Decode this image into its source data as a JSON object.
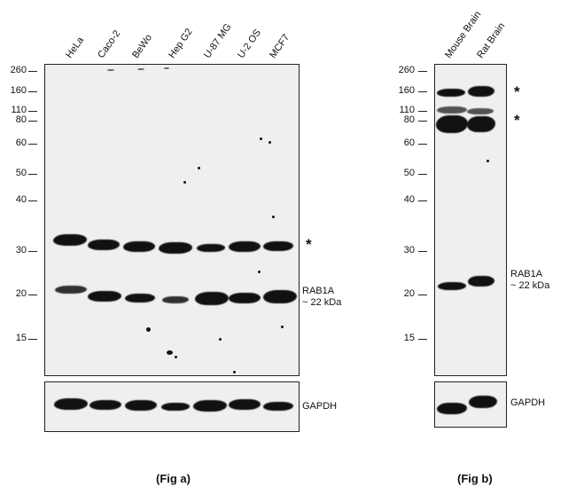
{
  "fig_a": {
    "lanes": [
      "HeLa",
      "Caco-2",
      "BeWo",
      "Hep G2",
      "U-87 MG",
      "U-2 OS",
      "MCF7"
    ],
    "markers": [
      "260",
      "160",
      "110",
      "80",
      "60",
      "50",
      "40",
      "30",
      "20",
      "15"
    ],
    "asterisk": "*",
    "band_label_line1": "RAB1A",
    "band_label_line2": "~ 22 kDa",
    "loading_label": "GAPDH",
    "caption": "(Fig a)"
  },
  "fig_b": {
    "lanes": [
      "Mouse Brain",
      "Rat Brain"
    ],
    "markers": [
      "260",
      "160",
      "110",
      "80",
      "60",
      "50",
      "40",
      "30",
      "20",
      "15"
    ],
    "asterisk_1": "*",
    "asterisk_2": "*",
    "band_label_line1": "RAB1A",
    "band_label_line2": "~ 22 kDa",
    "loading_label": "GAPDH",
    "caption": "(Fig b)"
  }
}
